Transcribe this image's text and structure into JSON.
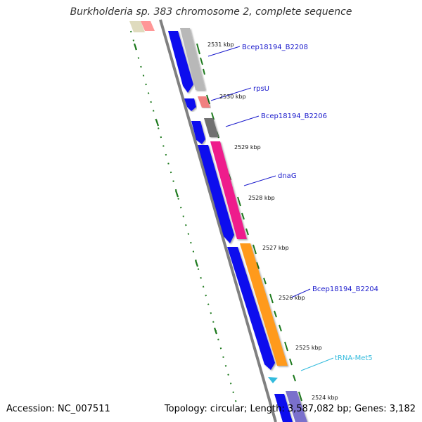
{
  "title": "Burkholderia sp. 383 chromosome 2, complete sequence",
  "accession_label": "Accession: NC_007511",
  "topology_label": "Topology: circular; Length: 3,587,082 bp; Genes: 3,182",
  "ticks": [
    {
      "label": "2531 kbp"
    },
    {
      "label": "2530 kbp"
    },
    {
      "label": "2529 kbp"
    },
    {
      "label": "2528 kbp"
    },
    {
      "label": "2527 kbp"
    },
    {
      "label": "2526 kbp"
    },
    {
      "label": "2525 kbp"
    },
    {
      "label": "2524 kbp"
    }
  ],
  "gene_labels": [
    {
      "label": "Bcep18194_B2208",
      "color": "#1a1acc"
    },
    {
      "label": "rpsU",
      "color": "#1a1acc"
    },
    {
      "label": "Bcep18194_B2206",
      "color": "#1a1acc"
    },
    {
      "label": "dnaG",
      "color": "#1a1acc"
    },
    {
      "label": "Bcep18194_B2204",
      "color": "#1a1acc"
    },
    {
      "label": "tRNA-Met5",
      "color": "#33bbdd"
    }
  ],
  "colors": {
    "cds_strand": "#0a0aee",
    "backbone": "#808080",
    "tick_green": "#1e7a1e",
    "gene_gray": "#b8b8b8",
    "gene_pink": "#f08080",
    "gene_darkgray": "#707070",
    "gene_magenta": "#ee1c8c",
    "gene_orange": "#ff9a1a",
    "trna": "#33bbdd",
    "top_khaki": "#b8b070",
    "top_red": "#ff1a1a",
    "bottom_purple": "#7a70cc"
  }
}
